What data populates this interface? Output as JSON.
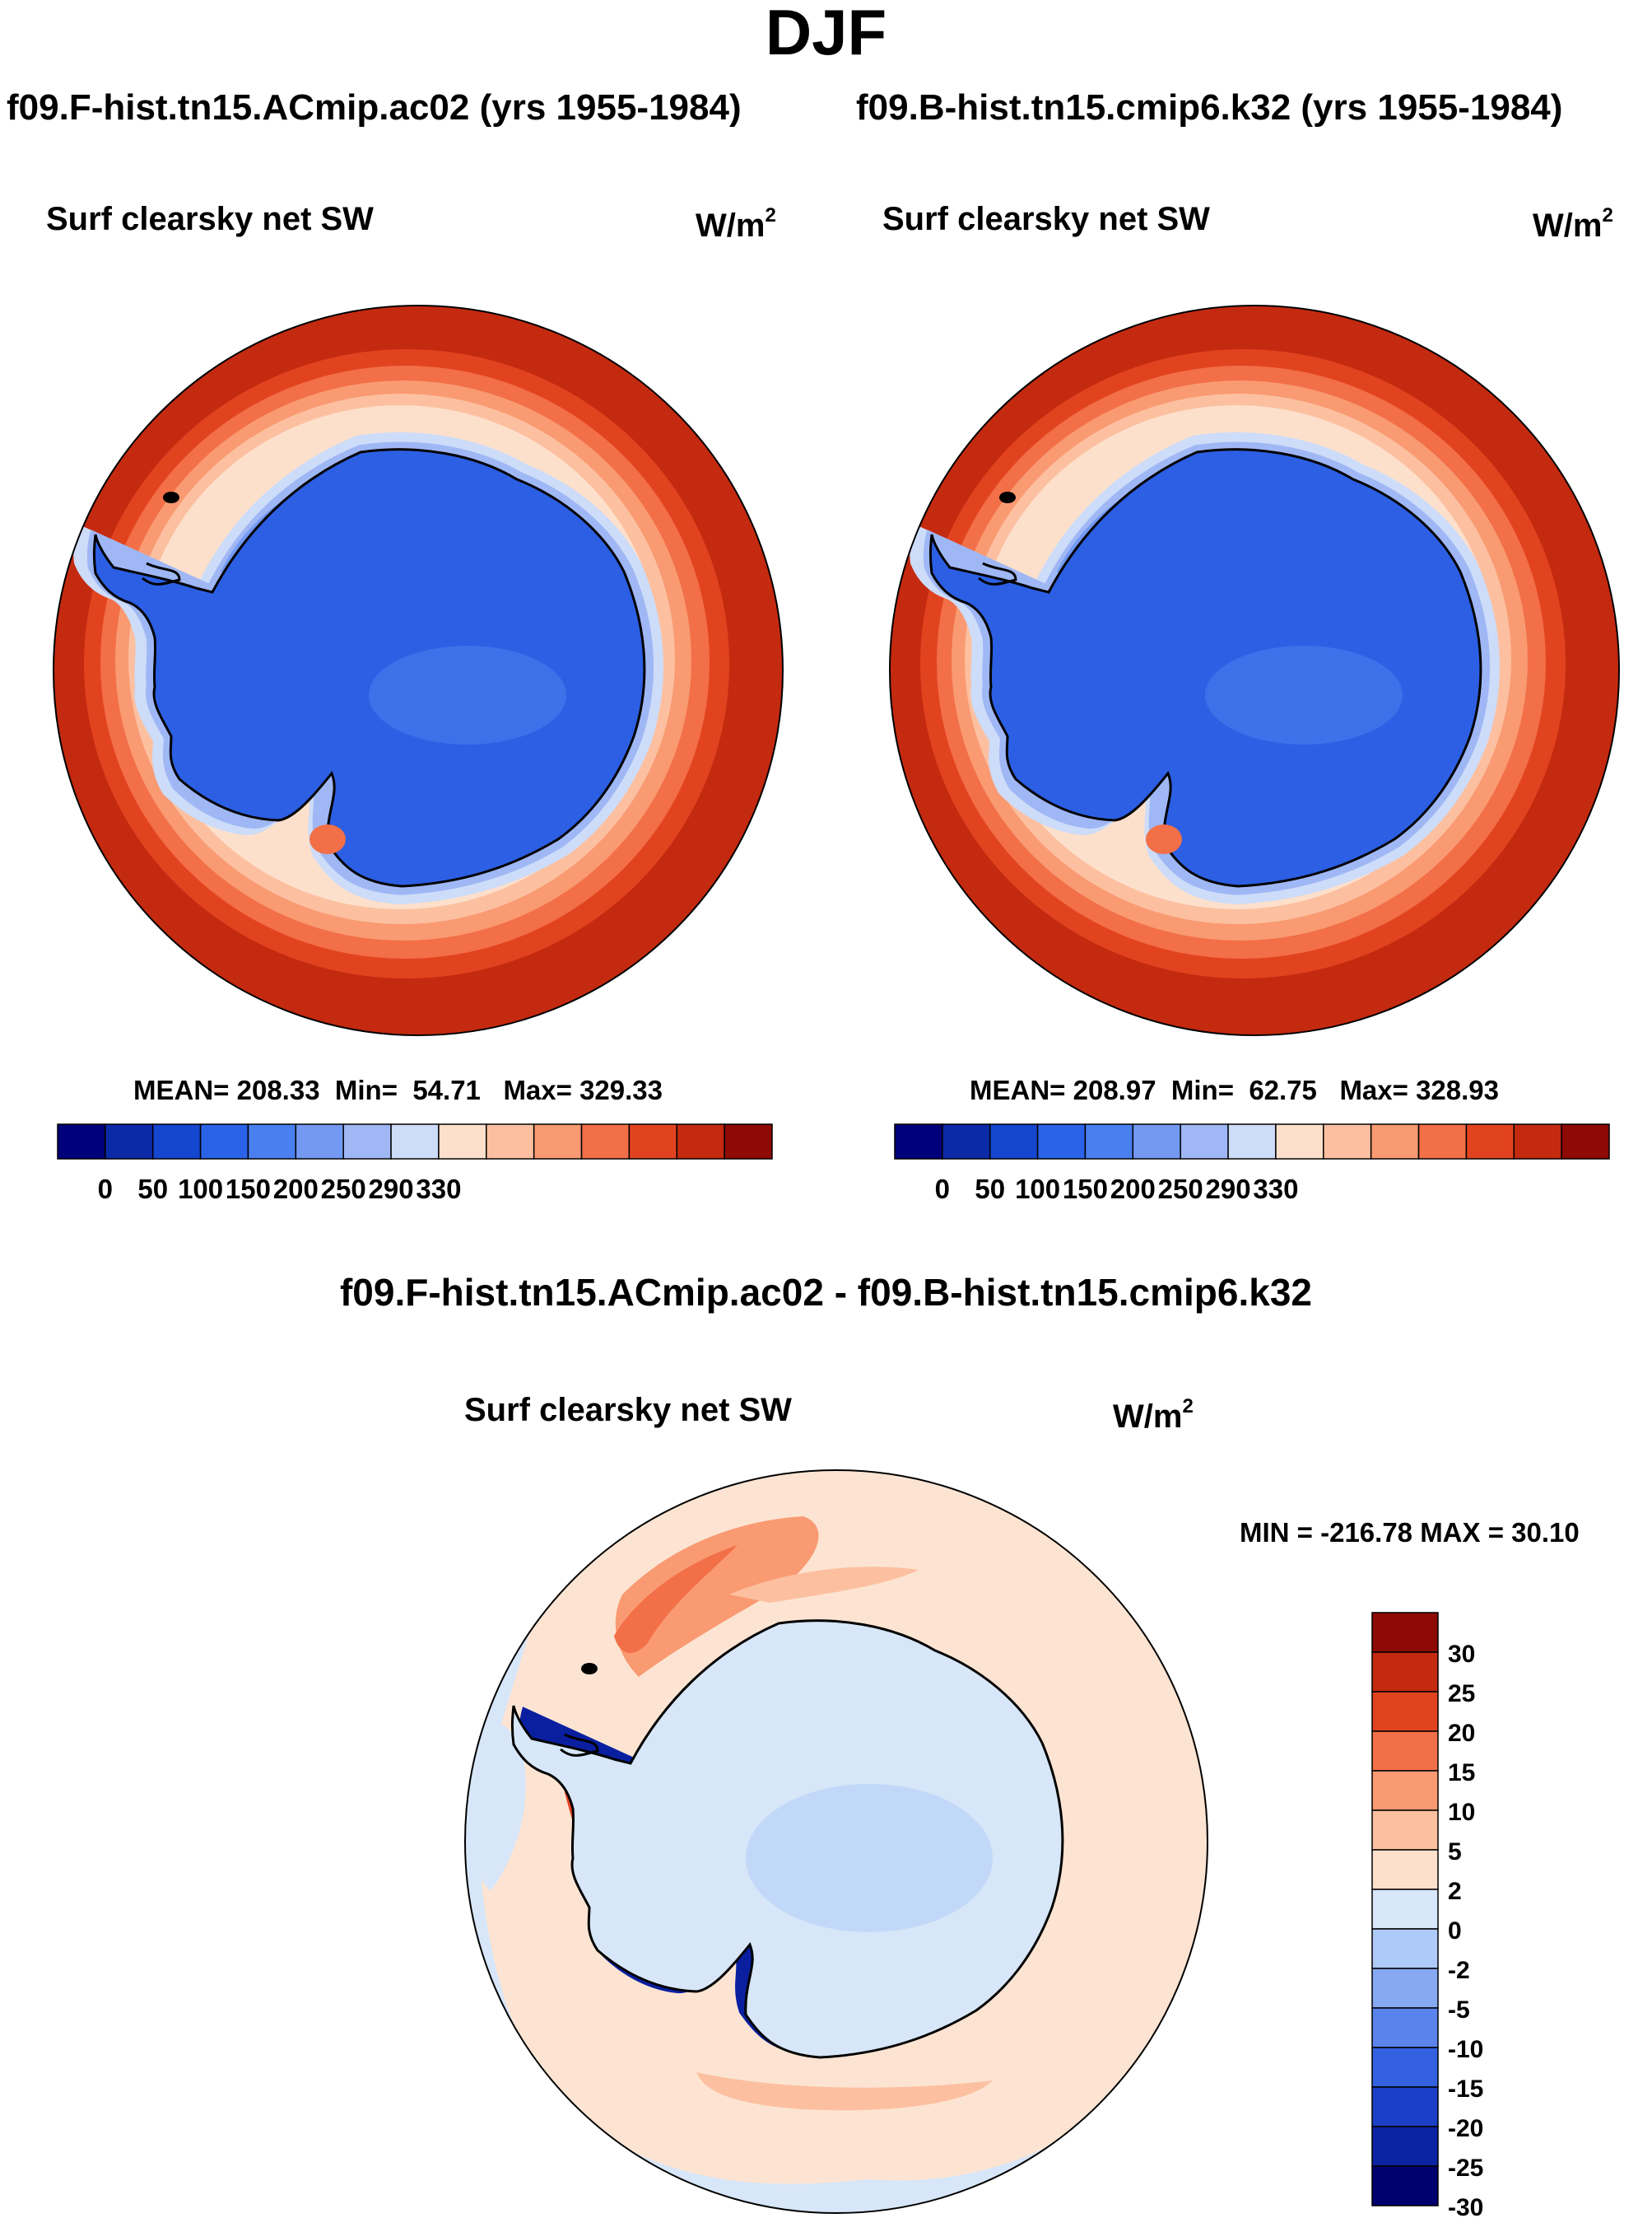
{
  "title": "DJF",
  "panels": [
    {
      "case": "f09.F-hist.tn15.ACmip.ac02 (yrs 1955-1984)",
      "variable": "Surf clearsky net SW",
      "units_base": "W/m",
      "units_exp": "2",
      "stats": {
        "mean_label": "MEAN=",
        "mean": "208.33",
        "min_label": "Min=",
        "min": "54.71",
        "max_label": "Max=",
        "max": "329.33"
      }
    },
    {
      "case": "f09.B-hist.tn15.cmip6.k32 (yrs 1955-1984)",
      "variable": "Surf clearsky net SW",
      "units_base": "W/m",
      "units_exp": "2",
      "stats": {
        "mean_label": "MEAN=",
        "mean": "208.97",
        "min_label": "Min=",
        "min": "62.75",
        "max_label": "Max=",
        "max": "328.93"
      }
    }
  ],
  "abs_colorbar": {
    "colors": [
      "#00007a",
      "#0a2aa8",
      "#1546cf",
      "#2a62e8",
      "#4a7ff0",
      "#7399f3",
      "#9fb7f5",
      "#cddcf8",
      "#fde0cc",
      "#fcc0a0",
      "#f99a72",
      "#f26f47",
      "#e2431f",
      "#c42a10",
      "#8d0a05"
    ],
    "labels": [
      "0",
      "50",
      "100",
      "150",
      "200",
      "250",
      "290",
      "330"
    ]
  },
  "diff": {
    "title": "f09.F-hist.tn15.ACmip.ac02 - f09.B-hist.tn15.cmip6.k32",
    "variable": "Surf clearsky net SW",
    "units_base": "W/m",
    "units_exp": "2",
    "minmax": "MIN = -216.78 MAX =  30.10",
    "colorbar": {
      "colors_top_to_bottom": [
        "#8d0a05",
        "#c42a10",
        "#e2431f",
        "#f26f47",
        "#f99a72",
        "#fcc0a0",
        "#fde0cc",
        "#d7e6f8",
        "#aecaf7",
        "#86a9f2",
        "#5a84ec",
        "#3461e0",
        "#1c3fc8",
        "#0c23a3",
        "#00006e"
      ],
      "labels": [
        "30",
        "25",
        "20",
        "15",
        "10",
        "5",
        "2",
        "0",
        "-2",
        "-5",
        "-10",
        "-15",
        "-20",
        "-25",
        "-30"
      ]
    }
  },
  "colors": {
    "ocean_far": "#c42a10",
    "ice_cap": "#2c5fe3",
    "coastline": "#000000",
    "diff_background": "#fde4d2",
    "diff_ice": "#d7e6f8",
    "diff_edge": "#0a1fa0"
  }
}
